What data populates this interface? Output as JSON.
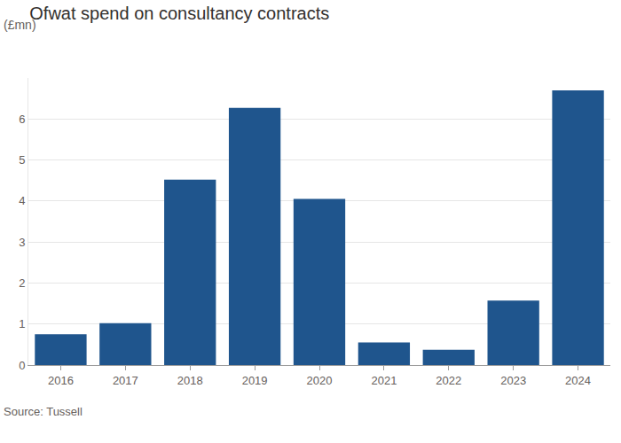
{
  "chart_data": {
    "type": "bar",
    "title": "Ofwat spend on consultancy contracts",
    "subtitle": "(£mn)",
    "source": "Source: Tussell",
    "categories": [
      "2016",
      "2017",
      "2018",
      "2019",
      "2020",
      "2021",
      "2022",
      "2023",
      "2024"
    ],
    "values": [
      0.75,
      1.02,
      4.52,
      6.27,
      4.05,
      0.55,
      0.37,
      1.57,
      6.7
    ],
    "color": "#1f558d",
    "ylim": [
      0,
      7
    ],
    "yticks": [
      0,
      1,
      2,
      3,
      4,
      5,
      6
    ],
    "grid": true
  }
}
